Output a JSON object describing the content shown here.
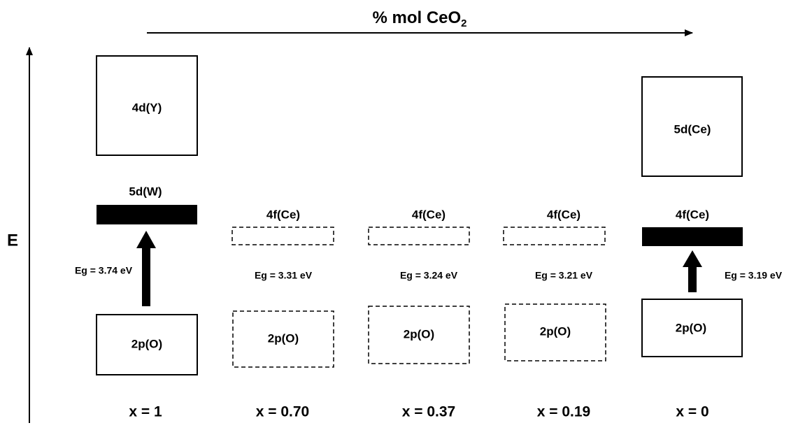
{
  "title": {
    "text": "% mol CeO",
    "subscript": "2"
  },
  "axis_label": "E",
  "columns": [
    {
      "label": "x = 1",
      "upper_band": "4d(Y)",
      "middle_band": "5d(W)",
      "gap": "Eg = 3.74 eV",
      "lower_band": "2p(O)"
    },
    {
      "label": "x = 0.70",
      "middle_band": "4f(Ce)",
      "gap": "Eg = 3.31 eV",
      "lower_band": "2p(O)"
    },
    {
      "label": "x = 0.37",
      "middle_band": "4f(Ce)",
      "gap": "Eg = 3.24 eV",
      "lower_band": "2p(O)"
    },
    {
      "label": "x = 0.19",
      "middle_band": "4f(Ce)",
      "gap": "Eg = 3.21 eV",
      "lower_band": "2p(O)"
    },
    {
      "label": "x = 0",
      "upper_band": "5d(Ce)",
      "middle_band": "4f(Ce)",
      "gap": "Eg = 3.19 eV",
      "lower_band": "2p(O)"
    }
  ]
}
